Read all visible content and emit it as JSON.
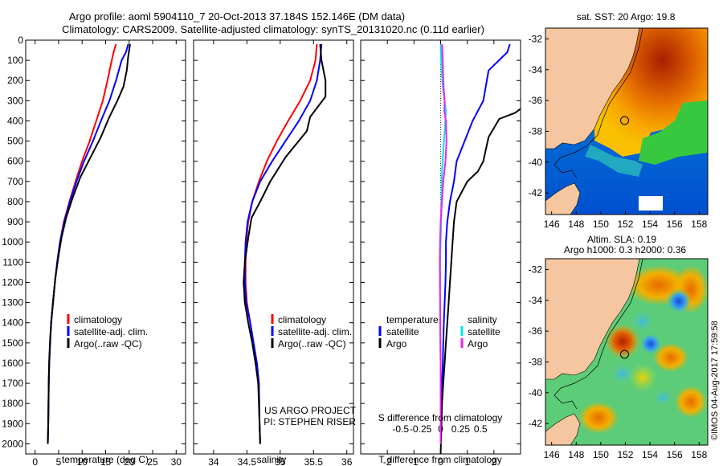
{
  "header": {
    "title_line1": "Argo profile: aoml 5904110_7 20-Oct-2013 37.184S 152.146E (DM data)",
    "title_line2": "Climatology: CARS2009. Satellite-adjusted climatology: synTS_20131020.nc (0.11d earlier)"
  },
  "colors": {
    "climatology": "#ff0000",
    "satellite": "#0000ff",
    "argo": "#000000",
    "cyan": "#00e5e5",
    "magenta": "#ee22ee",
    "land": "#f5c6a0"
  },
  "credit": "©IMOS 04-Aug-2017 17:59:58",
  "chart_data": [
    {
      "type": "line",
      "xlabel": "temperature (deg C)",
      "xlim": [
        -2,
        32
      ],
      "ylim": [
        2050,
        0
      ],
      "xticks": [
        0,
        5,
        10,
        15,
        20,
        25,
        30
      ],
      "yticks": [
        0,
        100,
        200,
        300,
        400,
        500,
        600,
        700,
        800,
        900,
        1000,
        1100,
        1200,
        1300,
        1400,
        1500,
        1600,
        1700,
        1800,
        1900,
        2000
      ],
      "legend": [
        "climatology",
        "satellite-adj. clim.",
        "Argo(..raw -QC)"
      ],
      "series": [
        {
          "name": "climatology",
          "color": "#ff0000",
          "x": [
            17.2,
            16.8,
            16.3,
            15.4,
            14.4,
            13.0,
            11.6,
            10.0,
            8.6,
            7.3,
            6.1,
            5.3,
            4.7,
            4.2,
            3.8,
            3.4,
            3.2,
            3.0,
            2.9,
            2.8,
            2.7
          ],
          "y": [
            20,
            50,
            100,
            200,
            300,
            400,
            500,
            600,
            700,
            800,
            900,
            1000,
            1100,
            1200,
            1300,
            1400,
            1500,
            1600,
            1700,
            1900,
            2000
          ]
        },
        {
          "name": "satellite-adj. clim.",
          "color": "#0000ff",
          "x": [
            19.8,
            19.3,
            18.4,
            17.2,
            15.8,
            14.0,
            12.3,
            10.4,
            8.8,
            7.4,
            6.2,
            5.3,
            4.7,
            4.2,
            3.8,
            3.4,
            3.2,
            3.0,
            2.9,
            2.8,
            2.7
          ],
          "y": [
            20,
            60,
            100,
            200,
            300,
            400,
            500,
            600,
            700,
            800,
            900,
            1000,
            1100,
            1200,
            1300,
            1400,
            1500,
            1600,
            1700,
            1900,
            2000
          ]
        },
        {
          "name": "Argo(..raw -QC)",
          "color": "#000000",
          "x": [
            20.2,
            19.8,
            19.5,
            18.8,
            17.5,
            15.8,
            14.0,
            11.8,
            9.6,
            8.0,
            6.6,
            5.6,
            4.9,
            4.3,
            3.9,
            3.5,
            3.2,
            3.0,
            2.9,
            2.8,
            2.7
          ],
          "y": [
            20,
            80,
            150,
            230,
            300,
            380,
            480,
            580,
            680,
            780,
            880,
            980,
            1080,
            1180,
            1280,
            1380,
            1480,
            1580,
            1680,
            1880,
            2000
          ]
        }
      ]
    },
    {
      "type": "line",
      "xlabel": "salinity",
      "xlim": [
        33.7,
        36.1
      ],
      "ylim": [
        2050,
        0
      ],
      "xticks": [
        34,
        34.5,
        35,
        35.5,
        36
      ],
      "legend": [
        "climatology",
        "satellite-adj. clim.",
        "Argo(..raw -QC)"
      ],
      "annotations": [
        "US ARGO PROJECT",
        "PI: STEPHEN RISER"
      ],
      "series": [
        {
          "name": "climatology",
          "color": "#ff0000",
          "x": [
            35.55,
            35.53,
            35.45,
            35.3,
            35.12,
            34.95,
            34.8,
            34.68,
            34.58,
            34.52,
            34.49,
            34.48,
            34.48,
            34.5,
            34.55,
            34.6,
            34.65,
            34.68,
            34.69,
            34.7
          ],
          "y": [
            20,
            100,
            200,
            300,
            400,
            500,
            600,
            700,
            800,
            900,
            1000,
            1100,
            1200,
            1300,
            1400,
            1500,
            1600,
            1700,
            1900,
            2000
          ]
        },
        {
          "name": "satellite-adj. clim.",
          "color": "#0000ff",
          "x": [
            35.62,
            35.6,
            35.55,
            35.45,
            35.28,
            35.08,
            34.88,
            34.7,
            34.58,
            34.51,
            34.48,
            34.47,
            34.47,
            34.49,
            34.55,
            34.6,
            34.65,
            34.68,
            34.69,
            34.7
          ],
          "y": [
            20,
            100,
            200,
            300,
            400,
            500,
            600,
            700,
            800,
            900,
            1000,
            1100,
            1200,
            1300,
            1400,
            1500,
            1600,
            1700,
            1900,
            2000
          ]
        },
        {
          "name": "Argo(..raw -QC)",
          "color": "#000000",
          "x": [
            35.6,
            35.62,
            35.68,
            35.68,
            35.45,
            35.4,
            35.08,
            34.85,
            34.7,
            34.57,
            34.52,
            34.47,
            34.45,
            34.47,
            34.52,
            34.58,
            34.63,
            34.67,
            34.69,
            34.7
          ],
          "y": [
            20,
            100,
            200,
            280,
            380,
            450,
            580,
            700,
            800,
            880,
            980,
            1100,
            1200,
            1300,
            1400,
            1500,
            1600,
            1700,
            1900,
            2000
          ]
        }
      ]
    },
    {
      "type": "line",
      "xlabel": "T difference from climatology",
      "x2label": "S difference from climatology",
      "xlim": [
        -3,
        3
      ],
      "ylim": [
        2050,
        0
      ],
      "xticks": [
        -2,
        -1,
        0,
        1,
        2
      ],
      "xticklabels": [
        "-2",
        "-1",
        "0",
        "1",
        "2"
      ],
      "x2ticks": [
        -0.5,
        -0.25,
        0,
        0.25,
        0.5
      ],
      "x2ticklabels": [
        "-0.5",
        "-0.25",
        "0",
        "0.25",
        "0.5"
      ],
      "legend_temperature": [
        "temperature",
        "satellite",
        "Argo"
      ],
      "legend_salinity": [
        "salinity",
        "satellite",
        "Argo"
      ],
      "series": [
        {
          "name": "satellite",
          "color": "#0000ff",
          "x": [
            2.6,
            2.5,
            1.8,
            1.6,
            1.2,
            0.9,
            0.6,
            0.5,
            0.35,
            0.25,
            0.2,
            0.2,
            0.18,
            0.15,
            0.12,
            0.1,
            0.08,
            0.05,
            0.03,
            0.0
          ],
          "y": [
            20,
            60,
            150,
            300,
            400,
            500,
            600,
            700,
            800,
            900,
            1000,
            1100,
            1200,
            1300,
            1400,
            1500,
            1600,
            1700,
            1900,
            2000
          ]
        },
        {
          "name": "Argo",
          "color": "#000000",
          "x": [
            3.0,
            2.8,
            2.2,
            1.8,
            1.6,
            1.4,
            1.0,
            0.6,
            0.5,
            0.45,
            0.4,
            0.35,
            0.3,
            0.25,
            0.2,
            0.15,
            0.1,
            0.05,
            0.02,
            0.0
          ],
          "y": [
            340,
            360,
            390,
            480,
            600,
            650,
            700,
            800,
            900,
            1000,
            1100,
            1200,
            1300,
            1400,
            1500,
            1600,
            1700,
            1800,
            1950,
            2050
          ]
        },
        {
          "name": "satellite",
          "color": "#00e5e5",
          "x": [
            0.0,
            0.02,
            0.06,
            0.1,
            0.15,
            0.2,
            0.15,
            0.1,
            0.05,
            0.03,
            0.02,
            0.0,
            -0.02,
            -0.02,
            -0.01,
            -0.01,
            0.0,
            0.0,
            0.0,
            0.0
          ],
          "y": [
            20,
            100,
            200,
            250,
            300,
            350,
            450,
            550,
            650,
            800,
            900,
            1000,
            1100,
            1200,
            1400,
            1500,
            1600,
            1700,
            1900,
            2000
          ]
        },
        {
          "name": "Argo",
          "color": "#ee22ee",
          "x": [
            0.05,
            0.08,
            0.1,
            0.12,
            0.15,
            0.14,
            0.2,
            0.22,
            0.18,
            0.1,
            0.05,
            0.0,
            -0.02,
            -0.03,
            -0.02,
            -0.01,
            0.0,
            0.0,
            0.0,
            0.0
          ],
          "y": [
            20,
            100,
            200,
            250,
            300,
            350,
            400,
            500,
            600,
            700,
            800,
            900,
            1000,
            1100,
            1300,
            1500,
            1600,
            1700,
            1900,
            2000
          ]
        }
      ]
    },
    {
      "type": "heatmap",
      "title": "sat. SST: 20 Argo: 19.8",
      "xticks": [
        146,
        148,
        150,
        152,
        154,
        156,
        158
      ],
      "yticks": [
        -32,
        -34,
        -36,
        -38,
        -40,
        -42
      ],
      "xlim": [
        145.5,
        158.7
      ],
      "ylim": [
        -43.4,
        -31.3
      ],
      "marker": {
        "lon": 152.146,
        "lat": -37.184
      }
    },
    {
      "type": "heatmap",
      "title": "Altim. SLA: 0.19",
      "subtitle": "Argo h1000: 0.3 h2000: 0.36",
      "xticks": [
        146,
        148,
        150,
        152,
        154,
        156,
        158
      ],
      "yticks": [
        -32,
        -34,
        -36,
        -38,
        -40,
        -42
      ],
      "xlim": [
        145.5,
        158.7
      ],
      "ylim": [
        -43.4,
        -31.3
      ],
      "marker": {
        "lon": 152.146,
        "lat": -37.184
      }
    }
  ]
}
